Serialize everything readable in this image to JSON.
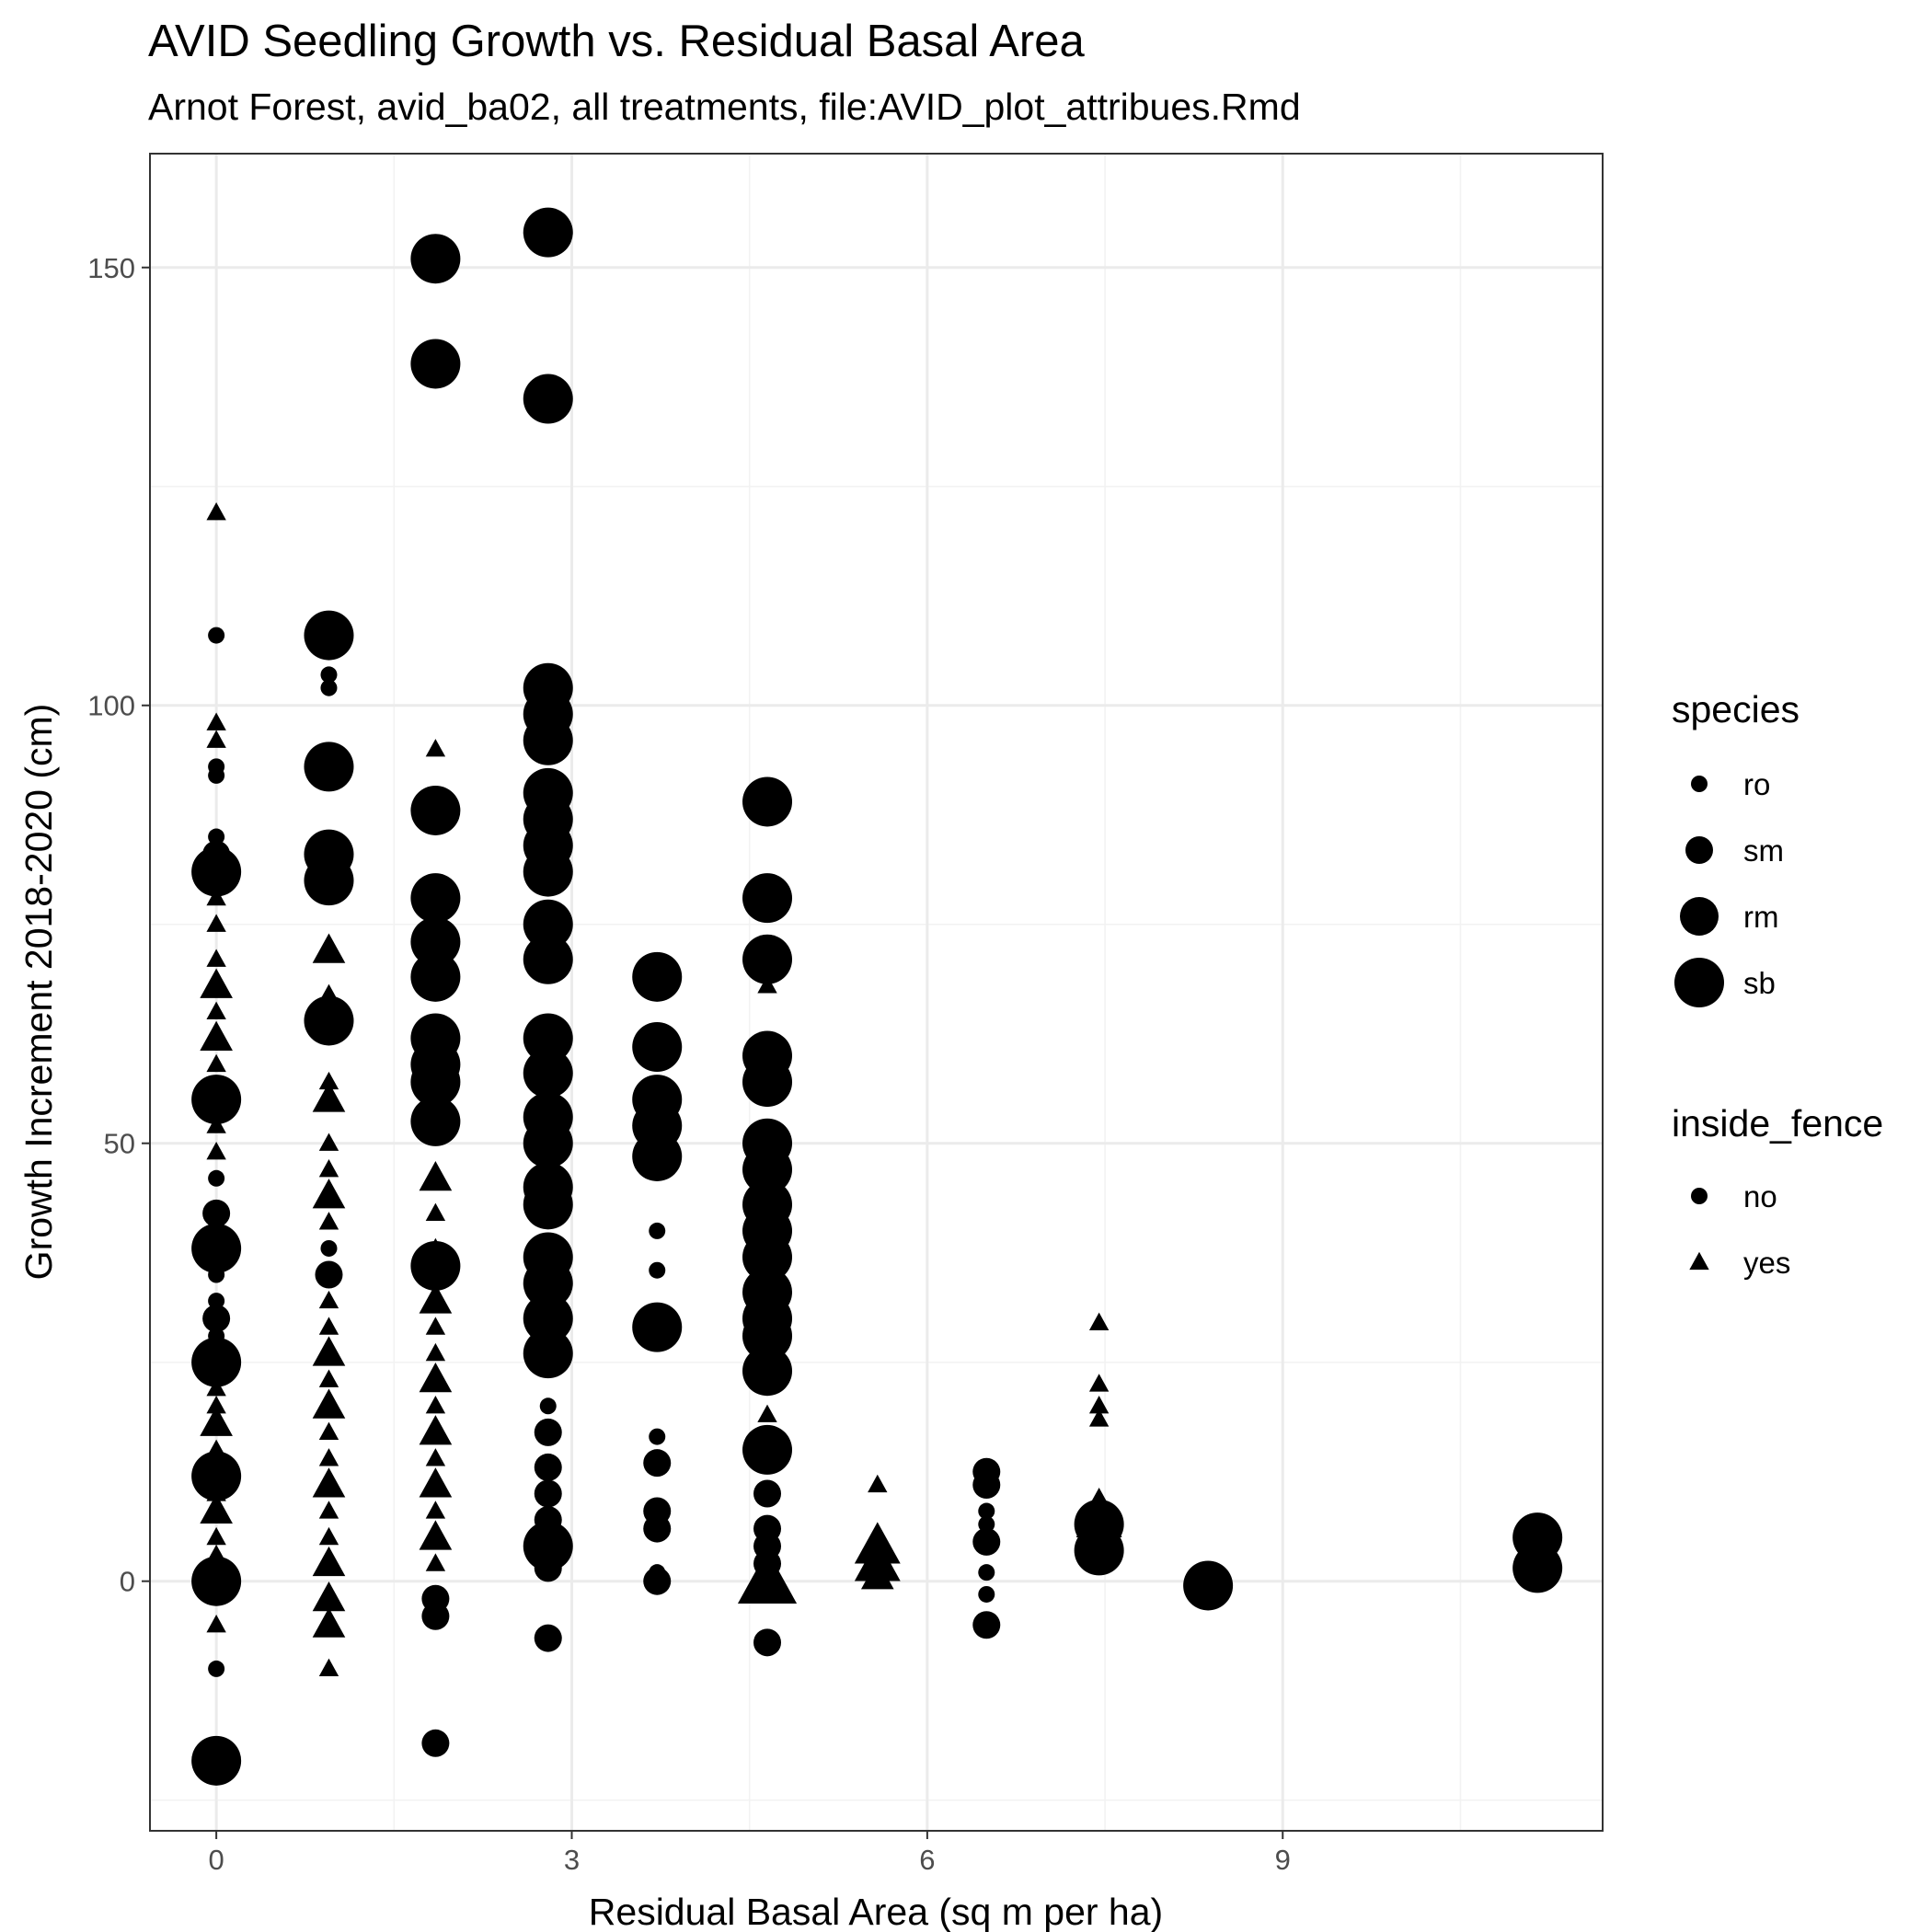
{
  "chart_data": {
    "type": "scatter",
    "title": "AVID Seedling Growth vs. Residual Basal Area",
    "subtitle": "Arnot Forest, avid_ba02, all treatments, file:AVID_plot_attribues.Rmd",
    "xlabel": "Residual Basal Area (sq m per ha)",
    "ylabel": "Growth Increment 2018-2020 (cm)",
    "xlim": [
      -0.56,
      11.7
    ],
    "ylim": [
      -28.5,
      163
    ],
    "x_ticks": [
      0,
      3,
      6,
      9
    ],
    "x_tick_labels": [
      "0",
      "3",
      "6",
      "9"
    ],
    "y_ticks": [
      0,
      50,
      100,
      150
    ],
    "y_tick_labels": [
      "0",
      "50",
      "100",
      "150"
    ],
    "grid": true,
    "legend_position": "right",
    "legends": [
      {
        "title": "species",
        "entries": [
          {
            "label": "ro",
            "shape": "circle",
            "size": "ro"
          },
          {
            "label": "sm",
            "shape": "circle",
            "size": "sm"
          },
          {
            "label": "rm",
            "shape": "circle",
            "size": "rm"
          },
          {
            "label": "sb",
            "shape": "circle",
            "size": "sb"
          }
        ]
      },
      {
        "title": "inside_fence",
        "entries": [
          {
            "label": "no",
            "shape": "circle",
            "size": "ro"
          },
          {
            "label": "yes",
            "shape": "triangle",
            "size": "ro"
          }
        ]
      }
    ],
    "columns": [
      "x",
      "y",
      "species",
      "inside_fence"
    ],
    "points": [
      [
        0,
        122,
        "ro",
        "yes"
      ],
      [
        0,
        108,
        "ro",
        "no"
      ],
      [
        0,
        98,
        "ro",
        "yes"
      ],
      [
        0,
        96,
        "ro",
        "yes"
      ],
      [
        0,
        93,
        "ro",
        "no"
      ],
      [
        0,
        92,
        "ro",
        "no"
      ],
      [
        0,
        85,
        "ro",
        "no"
      ],
      [
        0,
        83,
        "sm",
        "no"
      ],
      [
        0,
        81,
        "sb",
        "no"
      ],
      [
        0,
        78,
        "ro",
        "yes"
      ],
      [
        0,
        75,
        "ro",
        "yes"
      ],
      [
        0,
        71,
        "ro",
        "yes"
      ],
      [
        0,
        68,
        "sm",
        "yes"
      ],
      [
        0,
        65,
        "ro",
        "yes"
      ],
      [
        0,
        62,
        "sm",
        "yes"
      ],
      [
        0,
        59,
        "ro",
        "yes"
      ],
      [
        0,
        55,
        "sb",
        "no"
      ],
      [
        0,
        52,
        "ro",
        "yes"
      ],
      [
        0,
        49,
        "ro",
        "yes"
      ],
      [
        0,
        46,
        "ro",
        "no"
      ],
      [
        0,
        42,
        "sm",
        "no"
      ],
      [
        0,
        40,
        "ro",
        "no"
      ],
      [
        0,
        38,
        "sb",
        "no"
      ],
      [
        0,
        35,
        "ro",
        "no"
      ],
      [
        0,
        32,
        "ro",
        "no"
      ],
      [
        0,
        30,
        "sm",
        "no"
      ],
      [
        0,
        28,
        "ro",
        "no"
      ],
      [
        0,
        25,
        "sb",
        "no"
      ],
      [
        0,
        22,
        "ro",
        "yes"
      ],
      [
        0,
        20,
        "ro",
        "yes"
      ],
      [
        0,
        18,
        "sm",
        "yes"
      ],
      [
        0,
        15,
        "ro",
        "yes"
      ],
      [
        0,
        12,
        "sb",
        "no"
      ],
      [
        0,
        10,
        "ro",
        "yes"
      ],
      [
        0,
        8,
        "sm",
        "yes"
      ],
      [
        0,
        5,
        "ro",
        "yes"
      ],
      [
        0,
        3,
        "ro",
        "yes"
      ],
      [
        0,
        0,
        "sb",
        "no"
      ],
      [
        0,
        -5,
        "ro",
        "yes"
      ],
      [
        0,
        -10,
        "ro",
        "no"
      ],
      [
        0,
        -20.5,
        "sb",
        "no"
      ],
      [
        0.95,
        108,
        "sb",
        "no"
      ],
      [
        0.95,
        103.5,
        "ro",
        "no"
      ],
      [
        0.95,
        102,
        "ro",
        "no"
      ],
      [
        0.95,
        93,
        "sb",
        "no"
      ],
      [
        0.95,
        83,
        "sb",
        "no"
      ],
      [
        0.95,
        80,
        "sb",
        "no"
      ],
      [
        0.95,
        72,
        "sm",
        "yes"
      ],
      [
        0.95,
        67,
        "ro",
        "yes"
      ],
      [
        0.95,
        64,
        "sb",
        "no"
      ],
      [
        0.95,
        57,
        "ro",
        "yes"
      ],
      [
        0.95,
        55,
        "sm",
        "yes"
      ],
      [
        0.95,
        50,
        "ro",
        "yes"
      ],
      [
        0.95,
        47,
        "ro",
        "yes"
      ],
      [
        0.95,
        44,
        "sm",
        "yes"
      ],
      [
        0.95,
        41,
        "ro",
        "yes"
      ],
      [
        0.95,
        38,
        "ro",
        "no"
      ],
      [
        0.95,
        35,
        "sm",
        "no"
      ],
      [
        0.95,
        32,
        "ro",
        "yes"
      ],
      [
        0.95,
        29,
        "ro",
        "yes"
      ],
      [
        0.95,
        26,
        "sm",
        "yes"
      ],
      [
        0.95,
        23,
        "ro",
        "yes"
      ],
      [
        0.95,
        20,
        "sm",
        "yes"
      ],
      [
        0.95,
        17,
        "ro",
        "yes"
      ],
      [
        0.95,
        14,
        "ro",
        "yes"
      ],
      [
        0.95,
        11,
        "sm",
        "yes"
      ],
      [
        0.95,
        8,
        "ro",
        "yes"
      ],
      [
        0.95,
        5,
        "ro",
        "yes"
      ],
      [
        0.95,
        2,
        "sm",
        "yes"
      ],
      [
        0.95,
        -2,
        "sm",
        "yes"
      ],
      [
        0.95,
        -5,
        "sm",
        "yes"
      ],
      [
        0.95,
        -10,
        "ro",
        "yes"
      ],
      [
        1.85,
        151,
        "sb",
        "no"
      ],
      [
        1.85,
        139,
        "sb",
        "no"
      ],
      [
        1.85,
        95,
        "ro",
        "yes"
      ],
      [
        1.85,
        88,
        "sb",
        "no"
      ],
      [
        1.85,
        78,
        "sb",
        "no"
      ],
      [
        1.85,
        73,
        "sb",
        "no"
      ],
      [
        1.85,
        69,
        "sb",
        "no"
      ],
      [
        1.85,
        62,
        "sb",
        "no"
      ],
      [
        1.85,
        59,
        "sb",
        "no"
      ],
      [
        1.85,
        57,
        "sb",
        "no"
      ],
      [
        1.85,
        52.5,
        "sb",
        "no"
      ],
      [
        1.85,
        46,
        "sm",
        "yes"
      ],
      [
        1.85,
        42,
        "ro",
        "yes"
      ],
      [
        1.85,
        38,
        "ro",
        "yes"
      ],
      [
        1.85,
        36,
        "sb",
        "no"
      ],
      [
        1.85,
        32,
        "sm",
        "yes"
      ],
      [
        1.85,
        29,
        "ro",
        "yes"
      ],
      [
        1.85,
        26,
        "ro",
        "yes"
      ],
      [
        1.85,
        23,
        "sm",
        "yes"
      ],
      [
        1.85,
        20,
        "ro",
        "yes"
      ],
      [
        1.85,
        17,
        "sm",
        "yes"
      ],
      [
        1.85,
        14,
        "ro",
        "yes"
      ],
      [
        1.85,
        11,
        "sm",
        "yes"
      ],
      [
        1.85,
        8,
        "ro",
        "yes"
      ],
      [
        1.85,
        5,
        "sm",
        "yes"
      ],
      [
        1.85,
        2,
        "ro",
        "yes"
      ],
      [
        1.85,
        -2,
        "sm",
        "no"
      ],
      [
        1.85,
        -4,
        "sm",
        "no"
      ],
      [
        1.85,
        -18.5,
        "sm",
        "no"
      ],
      [
        2.8,
        154,
        "sb",
        "no"
      ],
      [
        2.8,
        135,
        "sb",
        "no"
      ],
      [
        2.8,
        102,
        "sb",
        "no"
      ],
      [
        2.8,
        99,
        "sb",
        "no"
      ],
      [
        2.8,
        96,
        "sb",
        "no"
      ],
      [
        2.8,
        90,
        "sb",
        "no"
      ],
      [
        2.8,
        87,
        "sb",
        "no"
      ],
      [
        2.8,
        84,
        "sb",
        "no"
      ],
      [
        2.8,
        81,
        "sb",
        "no"
      ],
      [
        2.8,
        75,
        "sb",
        "no"
      ],
      [
        2.8,
        71,
        "sb",
        "no"
      ],
      [
        2.8,
        62,
        "sb",
        "no"
      ],
      [
        2.8,
        58,
        "sb",
        "no"
      ],
      [
        2.8,
        53,
        "sb",
        "no"
      ],
      [
        2.8,
        50,
        "sb",
        "no"
      ],
      [
        2.8,
        45,
        "sb",
        "no"
      ],
      [
        2.8,
        43,
        "sb",
        "no"
      ],
      [
        2.8,
        37,
        "sb",
        "no"
      ],
      [
        2.8,
        34,
        "sb",
        "no"
      ],
      [
        2.8,
        30,
        "sb",
        "no"
      ],
      [
        2.8,
        26,
        "sb",
        "no"
      ],
      [
        2.8,
        20,
        "ro",
        "no"
      ],
      [
        2.8,
        17,
        "sm",
        "no"
      ],
      [
        2.8,
        13,
        "sm",
        "no"
      ],
      [
        2.8,
        10,
        "sm",
        "no"
      ],
      [
        2.8,
        7,
        "sm",
        "no"
      ],
      [
        2.8,
        4,
        "sb",
        "no"
      ],
      [
        2.8,
        1.5,
        "sm",
        "no"
      ],
      [
        2.8,
        -6.5,
        "sm",
        "no"
      ],
      [
        3.72,
        69,
        "sb",
        "no"
      ],
      [
        3.72,
        61,
        "sb",
        "no"
      ],
      [
        3.72,
        55,
        "sb",
        "no"
      ],
      [
        3.72,
        52,
        "sb",
        "no"
      ],
      [
        3.72,
        48.5,
        "sb",
        "no"
      ],
      [
        3.72,
        40,
        "ro",
        "no"
      ],
      [
        3.72,
        35.5,
        "ro",
        "no"
      ],
      [
        3.72,
        29,
        "sb",
        "no"
      ],
      [
        3.72,
        16.5,
        "ro",
        "no"
      ],
      [
        3.72,
        13.5,
        "sm",
        "no"
      ],
      [
        3.72,
        8,
        "sm",
        "no"
      ],
      [
        3.72,
        6,
        "sm",
        "no"
      ],
      [
        3.72,
        1,
        "ro",
        "no"
      ],
      [
        3.72,
        0,
        "sm",
        "no"
      ],
      [
        4.65,
        89,
        "sb",
        "no"
      ],
      [
        4.65,
        78,
        "sb",
        "no"
      ],
      [
        4.65,
        71,
        "sb",
        "no"
      ],
      [
        4.65,
        68,
        "ro",
        "yes"
      ],
      [
        4.65,
        60,
        "sb",
        "no"
      ],
      [
        4.65,
        57,
        "sb",
        "no"
      ],
      [
        4.65,
        50,
        "sb",
        "no"
      ],
      [
        4.65,
        47,
        "sb",
        "no"
      ],
      [
        4.65,
        43,
        "sb",
        "no"
      ],
      [
        4.65,
        40,
        "sb",
        "no"
      ],
      [
        4.65,
        37,
        "sb",
        "no"
      ],
      [
        4.65,
        33,
        "sb",
        "no"
      ],
      [
        4.65,
        30,
        "sb",
        "no"
      ],
      [
        4.65,
        28,
        "sb",
        "no"
      ],
      [
        4.65,
        24,
        "sb",
        "no"
      ],
      [
        4.65,
        19,
        "ro",
        "yes"
      ],
      [
        4.65,
        15,
        "sb",
        "no"
      ],
      [
        4.65,
        10,
        "sm",
        "no"
      ],
      [
        4.65,
        6,
        "sm",
        "no"
      ],
      [
        4.65,
        4,
        "sm",
        "no"
      ],
      [
        4.65,
        2,
        "sm",
        "no"
      ],
      [
        4.65,
        0,
        "sb",
        "yes"
      ],
      [
        4.65,
        -7,
        "sm",
        "no"
      ],
      [
        5.58,
        11,
        "ro",
        "yes"
      ],
      [
        5.58,
        4,
        "rm",
        "yes"
      ],
      [
        5.58,
        2,
        "rm",
        "yes"
      ],
      [
        5.58,
        0.5,
        "sm",
        "yes"
      ],
      [
        6.5,
        12.5,
        "sm",
        "no"
      ],
      [
        6.5,
        11,
        "sm",
        "no"
      ],
      [
        6.5,
        8,
        "ro",
        "no"
      ],
      [
        6.5,
        6.5,
        "ro",
        "no"
      ],
      [
        6.5,
        4.5,
        "sm",
        "no"
      ],
      [
        6.5,
        1,
        "ro",
        "no"
      ],
      [
        6.5,
        -1.5,
        "ro",
        "no"
      ],
      [
        6.5,
        -5,
        "sm",
        "no"
      ],
      [
        7.45,
        29.5,
        "ro",
        "yes"
      ],
      [
        7.45,
        22.5,
        "ro",
        "yes"
      ],
      [
        7.45,
        20,
        "ro",
        "yes"
      ],
      [
        7.45,
        18.5,
        "ro",
        "yes"
      ],
      [
        7.45,
        9.5,
        "ro",
        "yes"
      ],
      [
        7.45,
        7,
        "rm",
        "yes"
      ],
      [
        7.45,
        6.5,
        "sb",
        "no"
      ],
      [
        7.45,
        3.5,
        "sb",
        "no"
      ],
      [
        7.45,
        3,
        "rm",
        "no"
      ],
      [
        8.37,
        -0.5,
        "sb",
        "no"
      ],
      [
        11.15,
        5,
        "sb",
        "no"
      ],
      [
        11.15,
        1.5,
        "sb",
        "no"
      ]
    ]
  }
}
